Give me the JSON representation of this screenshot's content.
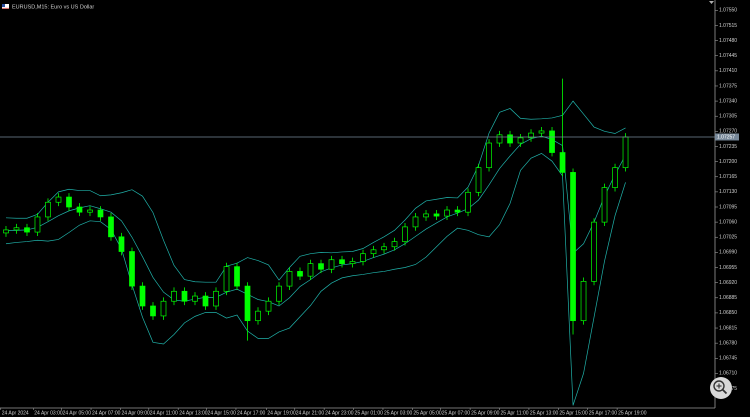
{
  "chart_data": {
    "type": "candlestick",
    "title": "EURUSD,M15: Euro vs US Dollar",
    "xlim": [
      -0.57,
      67.52
    ],
    "ylim": [
      1.0663,
      1.0756
    ],
    "yticks": [
      {
        "value": 1.0755,
        "label": "1.07550"
      },
      1.07515,
      {
        "value": 1.0748,
        "label": "1.07480"
      },
      1.07445,
      {
        "value": 1.0741,
        "label": "1.07410"
      },
      1.07375,
      {
        "value": 1.0734,
        "label": "1.07340"
      },
      1.07305,
      {
        "value": 1.0727,
        "label": "1.07270"
      },
      1.07235,
      {
        "value": 1.072,
        "label": "1.07200"
      },
      1.07165,
      {
        "value": 1.0713,
        "label": "1.07130"
      },
      1.07095,
      {
        "value": 1.0706,
        "label": "1.07060"
      },
      1.07025,
      {
        "value": 1.0699,
        "label": "1.06990"
      },
      1.06955,
      {
        "value": 1.0692,
        "label": "1.06920"
      },
      1.06885,
      {
        "value": 1.0685,
        "label": "1.06850"
      },
      1.06815,
      {
        "value": 1.0678,
        "label": "1.06780"
      },
      1.06745,
      {
        "value": 1.0671,
        "label": "1.06710"
      },
      1.06675
    ],
    "xticks": [
      {
        "value": -0.5,
        "label": "24 Apr 2024"
      },
      {
        "value": 2.6,
        "label": "24 Apr 03:00"
      },
      {
        "value": 5.3,
        "label": "24 Apr 05:00"
      },
      {
        "value": 8.1,
        "label": "24 Apr 07:00"
      },
      {
        "value": 10.9,
        "label": "24 Apr 09:00"
      },
      {
        "value": 13.6,
        "label": "24 Apr 11:00"
      },
      {
        "value": 16.4,
        "label": "24 Apr 13:00"
      },
      {
        "value": 19.1,
        "label": "24 Apr 15:00"
      },
      {
        "value": 21.9,
        "label": "24 Apr 17:00"
      },
      {
        "value": 24.8,
        "label": "24 Apr 19:00"
      },
      {
        "value": 27.5,
        "label": "24 Apr 21:00"
      },
      {
        "value": 30.3,
        "label": "24 Apr 23:00"
      },
      {
        "value": 33.1,
        "label": "25 Apr 01:00"
      },
      {
        "value": 35.9,
        "label": "25 Apr 03:00"
      },
      {
        "value": 38.7,
        "label": "25 Apr 05:00"
      },
      {
        "value": 41.4,
        "label": "25 Apr 07:00"
      },
      {
        "value": 44.2,
        "label": "25 Apr 09:00"
      },
      {
        "value": 47.0,
        "label": "25 Apr 11:00"
      },
      {
        "value": 49.8,
        "label": "25 Apr 13:00"
      },
      {
        "value": 52.6,
        "label": "25 Apr 15:00"
      },
      {
        "value": 55.4,
        "label": "25 Apr 17:00"
      },
      {
        "value": 58.2,
        "label": "25 Apr 19:00"
      }
    ],
    "current_price": 1.07257,
    "outline_color": "#00ff00",
    "up_fill": "#000000",
    "down_fill": "#00ff00",
    "price_line_color": "#778899",
    "open": [
      1.07035,
      1.07042,
      1.07047,
      1.07037,
      1.07072,
      1.07106,
      1.07118,
      1.07095,
      1.07083,
      1.07088,
      1.07072,
      1.07026,
      1.06992,
      1.06912,
      1.06866,
      1.06843,
      1.06877,
      1.069,
      1.06877,
      1.06889,
      1.06866,
      1.069,
      1.06957,
      1.06912,
      1.06832,
      1.06854,
      1.06877,
      1.06912,
      1.06946,
      1.06935,
      1.06964,
      1.06951,
      1.06973,
      1.06964,
      1.06969,
      1.06987,
      1.06996,
      1.07003,
      1.07015,
      1.07049,
      1.07072,
      1.07079,
      1.07074,
      1.07088,
      1.07083,
      1.07129,
      1.07186,
      1.07243,
      1.07262,
      1.07243,
      1.07255,
      1.07266,
      1.07271,
      1.07221,
      1.07175,
      1.06832,
      1.06923,
      1.0706,
      1.0714,
      1.07186
    ],
    "high": [
      1.07051,
      1.07056,
      1.07056,
      1.07081,
      1.07115,
      1.07127,
      1.07127,
      1.07104,
      1.07097,
      1.07097,
      1.07081,
      1.07035,
      1.07001,
      1.06921,
      1.06875,
      1.06886,
      1.06909,
      1.06909,
      1.06898,
      1.06898,
      1.06909,
      1.06966,
      1.06966,
      1.06921,
      1.06863,
      1.06886,
      1.06921,
      1.06955,
      1.06955,
      1.06973,
      1.06973,
      1.06982,
      1.06982,
      1.06978,
      1.06996,
      1.07005,
      1.07012,
      1.07024,
      1.07058,
      1.07081,
      1.07088,
      1.07088,
      1.07097,
      1.07097,
      1.07138,
      1.07195,
      1.07252,
      1.07271,
      1.07271,
      1.07264,
      1.07275,
      1.0728,
      1.0728,
      1.07392,
      1.07184,
      1.06932,
      1.07069,
      1.07149,
      1.07195,
      1.07266
    ],
    "low": [
      1.07026,
      1.07033,
      1.07028,
      1.07028,
      1.07063,
      1.07097,
      1.07086,
      1.07074,
      1.07074,
      1.07063,
      1.07017,
      1.06983,
      1.06903,
      1.06857,
      1.06834,
      1.06834,
      1.06868,
      1.06868,
      1.06868,
      1.06857,
      1.06857,
      1.06891,
      1.06903,
      1.06786,
      1.06823,
      1.06845,
      1.06868,
      1.06903,
      1.06926,
      1.06926,
      1.06942,
      1.06942,
      1.06955,
      1.06955,
      1.0696,
      1.06978,
      1.06987,
      1.06994,
      1.07006,
      1.0704,
      1.07063,
      1.07065,
      1.07065,
      1.07074,
      1.07074,
      1.0712,
      1.07177,
      1.07234,
      1.07234,
      1.07234,
      1.07246,
      1.07257,
      1.07212,
      1.07166,
      1.068,
      1.06823,
      1.06914,
      1.07051,
      1.07131,
      1.07177
    ],
    "close": [
      1.07042,
      1.07047,
      1.07037,
      1.07072,
      1.07106,
      1.07118,
      1.07095,
      1.07083,
      1.07088,
      1.07072,
      1.07026,
      1.06992,
      1.06912,
      1.06866,
      1.06843,
      1.06877,
      1.069,
      1.06877,
      1.06889,
      1.06866,
      1.069,
      1.06957,
      1.06912,
      1.06832,
      1.06854,
      1.06877,
      1.06912,
      1.06946,
      1.06935,
      1.06964,
      1.06951,
      1.06973,
      1.06964,
      1.06969,
      1.06987,
      1.06996,
      1.07003,
      1.07015,
      1.07049,
      1.07072,
      1.07079,
      1.07074,
      1.07088,
      1.07083,
      1.07129,
      1.07186,
      1.07243,
      1.07262,
      1.07243,
      1.07255,
      1.07266,
      1.07271,
      1.07221,
      1.07175,
      1.06832,
      1.06923,
      1.0706,
      1.0714,
      1.07186,
      1.07257
    ],
    "bands": {
      "color": "#20b2aa",
      "upper": [
        1.0707,
        1.07069,
        1.07069,
        1.07078,
        1.07106,
        1.0713,
        1.07136,
        1.07133,
        1.07133,
        1.07121,
        1.07123,
        1.07128,
        1.07135,
        1.0712,
        1.07082,
        1.07018,
        1.0696,
        1.06927,
        1.06922,
        1.06921,
        1.06921,
        1.06958,
        1.06965,
        1.06978,
        1.06971,
        1.06961,
        1.06926,
        1.06955,
        1.06981,
        1.06987,
        1.0699,
        1.06989,
        1.06991,
        1.06992,
        1.06999,
        1.07013,
        1.07026,
        1.07041,
        1.07065,
        1.07092,
        1.07109,
        1.07113,
        1.07117,
        1.07116,
        1.07141,
        1.07191,
        1.07266,
        1.07314,
        1.07323,
        1.073,
        1.07298,
        1.07299,
        1.07301,
        1.07307,
        1.0734,
        1.0731,
        1.0728,
        1.0727,
        1.07265,
        1.07278
      ],
      "middle": [
        1.0704,
        1.07041,
        1.07042,
        1.07048,
        1.07061,
        1.07075,
        1.07086,
        1.07093,
        1.07098,
        1.07091,
        1.07083,
        1.07063,
        1.07025,
        1.0698,
        1.06932,
        1.06898,
        1.0688,
        1.06877,
        1.06882,
        1.06886,
        1.06886,
        1.06898,
        1.06905,
        1.06893,
        1.06881,
        1.06876,
        1.06866,
        1.06885,
        1.06911,
        1.06927,
        1.06945,
        1.06954,
        1.06961,
        1.06964,
        1.06969,
        1.06978,
        1.06986,
        1.06996,
        1.0701,
        1.07027,
        1.07044,
        1.07058,
        1.07072,
        1.07081,
        1.07091,
        1.07111,
        1.07146,
        1.07184,
        1.07213,
        1.0724,
        1.07253,
        1.07259,
        1.07251,
        1.07237,
        1.06988,
        1.0701,
        1.0706,
        1.0712,
        1.0717,
        1.07215
      ],
      "lower": [
        1.0701,
        1.07013,
        1.07015,
        1.07018,
        1.07016,
        1.0702,
        1.07036,
        1.07053,
        1.07063,
        1.07061,
        1.07043,
        1.06998,
        1.06915,
        1.0684,
        1.06782,
        1.06778,
        1.068,
        1.06827,
        1.06842,
        1.06851,
        1.06851,
        1.06838,
        1.06845,
        1.06808,
        1.06791,
        1.06791,
        1.06806,
        1.06815,
        1.06841,
        1.06867,
        1.069,
        1.06919,
        1.06931,
        1.06936,
        1.06939,
        1.06943,
        1.06946,
        1.06951,
        1.06955,
        1.06962,
        1.06979,
        1.07003,
        1.07027,
        1.07046,
        1.07041,
        1.07031,
        1.07026,
        1.07054,
        1.07103,
        1.0718,
        1.07208,
        1.07219,
        1.07201,
        1.07167,
        1.06636,
        1.0671,
        1.0684,
        1.0697,
        1.07075,
        1.07152
      ]
    }
  }
}
